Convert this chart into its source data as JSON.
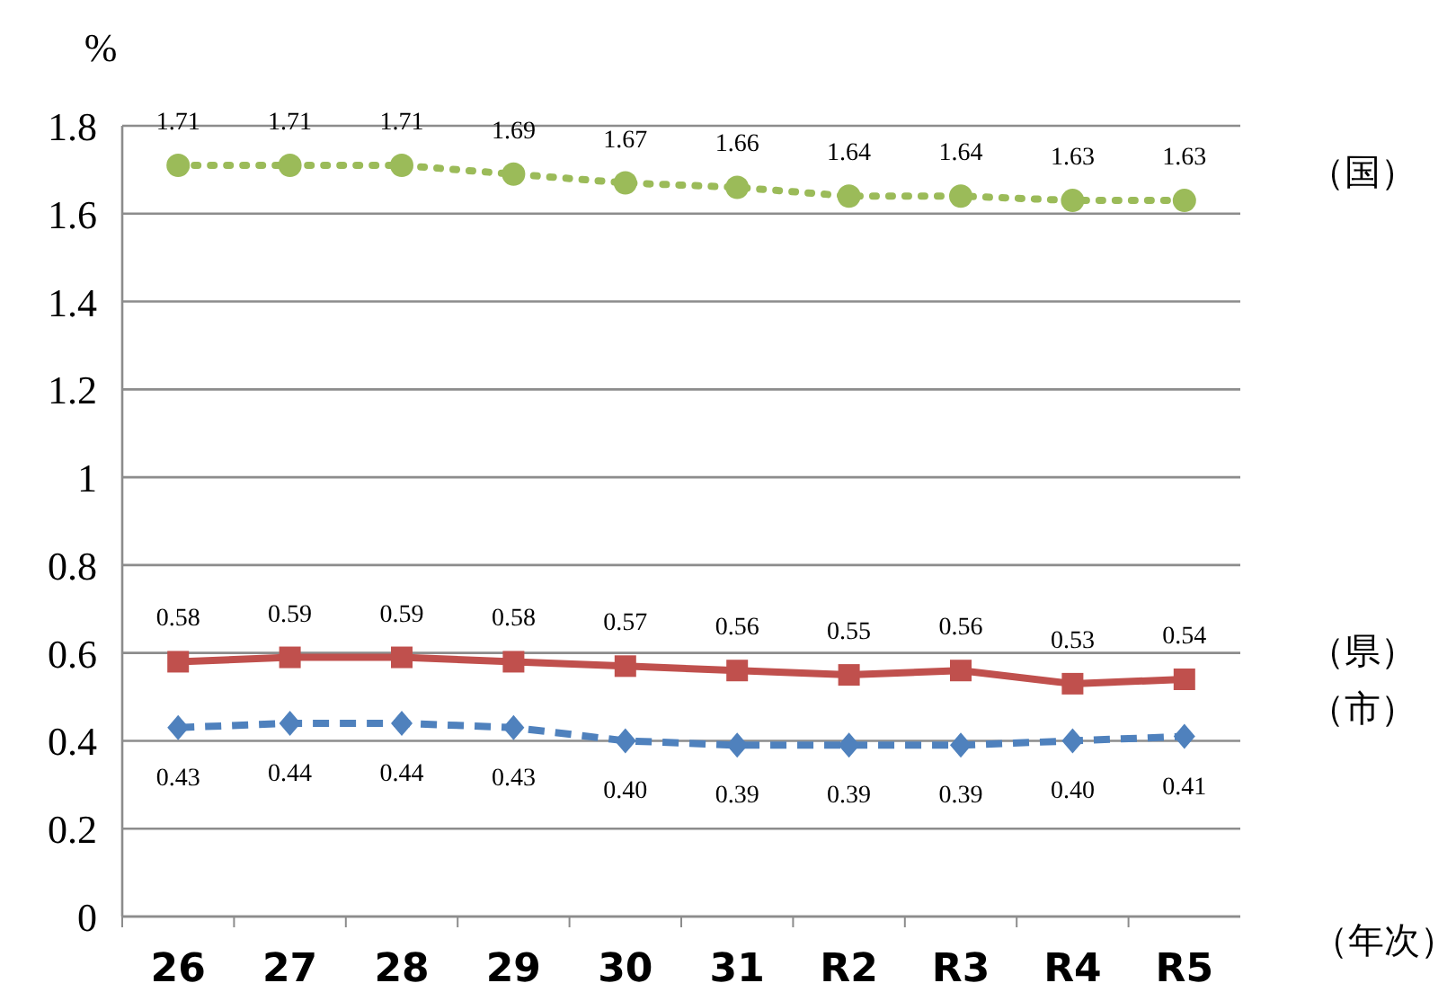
{
  "chart_data": {
    "type": "line",
    "ylabel": "%",
    "xlabel": "（年次）",
    "categories": [
      "26",
      "27",
      "28",
      "29",
      "30",
      "31",
      "R2",
      "R3",
      "R4",
      "R5"
    ],
    "ylim": [
      0,
      1.8
    ],
    "yticks": [
      0,
      0.2,
      0.4,
      0.6,
      0.8,
      1,
      1.2,
      1.4,
      1.6,
      1.8
    ],
    "grid": "y",
    "legend": false,
    "series": [
      {
        "name": "（国）",
        "color": "#9bbb59",
        "marker": "circle",
        "line_style": "dotted",
        "values": [
          1.71,
          1.71,
          1.71,
          1.69,
          1.67,
          1.66,
          1.64,
          1.64,
          1.63,
          1.63
        ],
        "value_labels": [
          "1.71",
          "1.71",
          "1.71",
          "1.69",
          "1.67",
          "1.66",
          "1.64",
          "1.64",
          "1.63",
          "1.63"
        ]
      },
      {
        "name": "（県）",
        "color": "#c0504d",
        "marker": "square",
        "line_style": "solid",
        "values": [
          0.58,
          0.59,
          0.59,
          0.58,
          0.57,
          0.56,
          0.55,
          0.56,
          0.53,
          0.54
        ],
        "value_labels": [
          "0.58",
          "0.59",
          "0.59",
          "0.58",
          "0.57",
          "0.56",
          "0.55",
          "0.56",
          "0.53",
          "0.54"
        ]
      },
      {
        "name": "（市）",
        "color": "#4f81bd",
        "marker": "diamond",
        "line_style": "dashed",
        "values": [
          0.43,
          0.44,
          0.44,
          0.43,
          0.4,
          0.39,
          0.39,
          0.39,
          0.4,
          0.41
        ],
        "value_labels": [
          "0.43",
          "0.44",
          "0.44",
          "0.43",
          "0.40",
          "0.39",
          "0.39",
          "0.39",
          "0.40",
          "0.41"
        ]
      }
    ]
  }
}
